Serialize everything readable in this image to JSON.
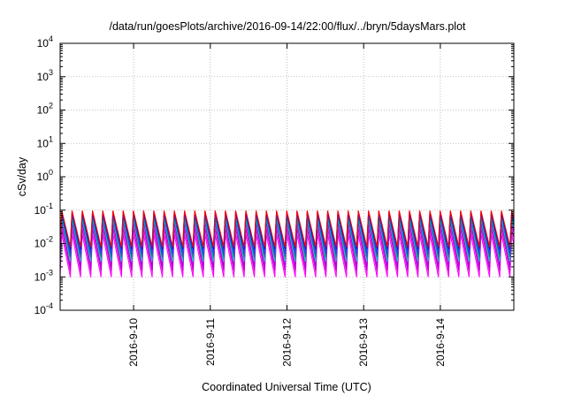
{
  "chart_data": {
    "type": "line",
    "title": "/data/run/goesPlots/archive/2016-09-14/22:00/flux/../bryn/5daysMars.plot",
    "xlabel": "Coordinated Universal Time (UTC)",
    "ylabel": "cSv/day",
    "y_scale": "log",
    "ylim": [
      0.0001,
      10000
    ],
    "y_ticks": [
      {
        "base": "10",
        "exp": "4"
      },
      {
        "base": "10",
        "exp": "3"
      },
      {
        "base": "10",
        "exp": "2"
      },
      {
        "base": "10",
        "exp": "1"
      },
      {
        "base": "10",
        "exp": "0"
      },
      {
        "base": "10",
        "exp": "-1"
      },
      {
        "base": "10",
        "exp": "-2"
      },
      {
        "base": "10",
        "exp": "-3"
      },
      {
        "base": "10",
        "exp": "-4"
      }
    ],
    "xlim": [
      "2016-09-09T01:00",
      "2016-09-14T23:00"
    ],
    "x_ticks": [
      "2016-9-10",
      "2016-9-11",
      "2016-9-12",
      "2016-9-13",
      "2016-9-14"
    ],
    "grid": true,
    "oscillation_period_hours": 3.2,
    "series": [
      {
        "color": "#ff00ff",
        "min": 0.001,
        "max": 0.02
      },
      {
        "color": "#cc00cc",
        "min": 0.0015,
        "max": 0.03
      },
      {
        "color": "#aa00dd",
        "min": 0.002,
        "max": 0.045
      },
      {
        "color": "#00c0c0",
        "min": 0.003,
        "max": 0.06
      },
      {
        "color": "#008080",
        "min": 0.004,
        "max": 0.07
      },
      {
        "color": "#2040ff",
        "min": 0.005,
        "max": 0.085
      },
      {
        "color": "#0000cc",
        "min": 0.007,
        "max": 0.095
      },
      {
        "color": "#ff0000",
        "min": 0.008,
        "max": 0.1
      }
    ]
  }
}
